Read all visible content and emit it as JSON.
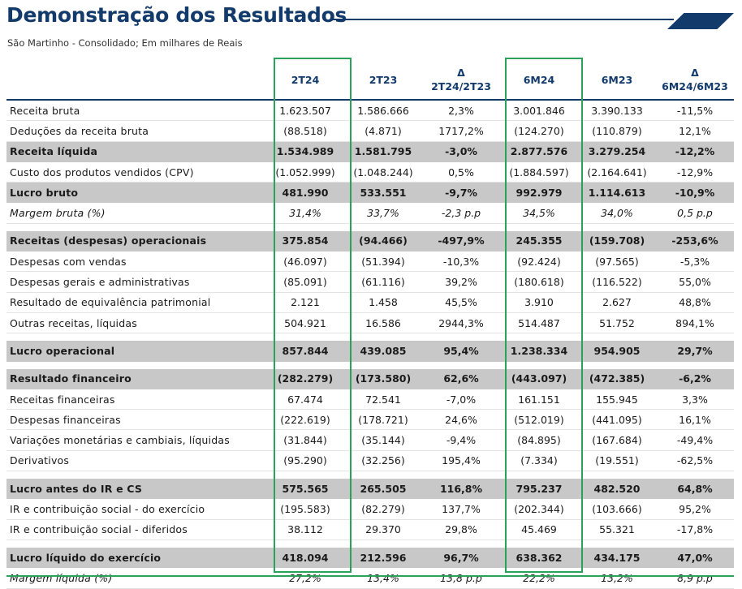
{
  "header": {
    "title": "Demonstração dos Resultados",
    "subtitle": "São Martinho - Consolidado; Em milhares de Reais"
  },
  "colors": {
    "title": "#123a6b",
    "highlight": "#2aa35a",
    "row_highlight": "#c8c8c8"
  },
  "table": {
    "columns": [
      {
        "label": "2T24",
        "sub": ""
      },
      {
        "label": "2T23",
        "sub": ""
      },
      {
        "label": "Δ",
        "sub": "2T24/2T23"
      },
      {
        "label": "6M24",
        "sub": ""
      },
      {
        "label": "6M23",
        "sub": ""
      },
      {
        "label": "Δ",
        "sub": "6M24/6M23"
      }
    ],
    "rows": [
      {
        "label": "Receita bruta",
        "values": [
          "1.623.507",
          "1.586.666",
          "2,3%",
          "3.001.846",
          "3.390.133",
          "-11,5%"
        ]
      },
      {
        "label": "Deduções da receita bruta",
        "values": [
          "(88.518)",
          "(4.871)",
          "1717,2%",
          "(124.270)",
          "(110.879)",
          "12,1%"
        ]
      },
      {
        "label": "Receita líquida",
        "values": [
          "1.534.989",
          "1.581.795",
          "-3,0%",
          "2.877.576",
          "3.279.254",
          "-12,2%"
        ]
      },
      {
        "label": "Custo dos produtos vendidos (CPV)",
        "values": [
          "(1.052.999)",
          "(1.048.244)",
          "0,5%",
          "(1.884.597)",
          "(2.164.641)",
          "-12,9%"
        ]
      },
      {
        "label": "Lucro bruto",
        "values": [
          "481.990",
          "533.551",
          "-9,7%",
          "992.979",
          "1.114.613",
          "-10,9%"
        ]
      },
      {
        "label": "Margem bruta (%)",
        "values": [
          "31,4%",
          "33,7%",
          "-2,3 p.p",
          "34,5%",
          "34,0%",
          "0,5 p.p"
        ]
      },
      {
        "label": "Receitas (despesas) operacionais",
        "values": [
          "375.854",
          "(94.466)",
          "-497,9%",
          "245.355",
          "(159.708)",
          "-253,6%"
        ]
      },
      {
        "label": "Despesas com vendas",
        "values": [
          "(46.097)",
          "(51.394)",
          "-10,3%",
          "(92.424)",
          "(97.565)",
          "-5,3%"
        ]
      },
      {
        "label": "Despesas gerais e administrativas",
        "values": [
          "(85.091)",
          "(61.116)",
          "39,2%",
          "(180.618)",
          "(116.522)",
          "55,0%"
        ]
      },
      {
        "label": "Resultado de equivalência patrimonial",
        "values": [
          "2.121",
          "1.458",
          "45,5%",
          "3.910",
          "2.627",
          "48,8%"
        ]
      },
      {
        "label": "Outras receitas, líquidas",
        "values": [
          "504.921",
          "16.586",
          "2944,3%",
          "514.487",
          "51.752",
          "894,1%"
        ]
      },
      {
        "label": "Lucro operacional",
        "values": [
          "857.844",
          "439.085",
          "95,4%",
          "1.238.334",
          "954.905",
          "29,7%"
        ]
      },
      {
        "label": "Resultado financeiro",
        "values": [
          "(282.279)",
          "(173.580)",
          "62,6%",
          "(443.097)",
          "(472.385)",
          "-6,2%"
        ]
      },
      {
        "label": "Receitas financeiras",
        "values": [
          "67.474",
          "72.541",
          "-7,0%",
          "161.151",
          "155.945",
          "3,3%"
        ]
      },
      {
        "label": "Despesas financeiras",
        "values": [
          "(222.619)",
          "(178.721)",
          "24,6%",
          "(512.019)",
          "(441.095)",
          "16,1%"
        ]
      },
      {
        "label": "Variações monetárias e cambiais, líquidas",
        "values": [
          "(31.844)",
          "(35.144)",
          "-9,4%",
          "(84.895)",
          "(167.684)",
          "-49,4%"
        ]
      },
      {
        "label": "Derivativos",
        "values": [
          "(95.290)",
          "(32.256)",
          "195,4%",
          "(7.334)",
          "(19.551)",
          "-62,5%"
        ]
      },
      {
        "label": "Lucro antes do IR e CS",
        "values": [
          "575.565",
          "265.505",
          "116,8%",
          "795.237",
          "482.520",
          "64,8%"
        ]
      },
      {
        "label": "IR e contribuição social - do exercício",
        "values": [
          "(195.583)",
          "(82.279)",
          "137,7%",
          "(202.344)",
          "(103.666)",
          "95,2%"
        ]
      },
      {
        "label": "IR e contribuição social - diferidos",
        "values": [
          "38.112",
          "29.370",
          "29,8%",
          "45.469",
          "55.321",
          "-17,8%"
        ]
      },
      {
        "label": "Lucro líquido do exercício",
        "values": [
          "418.094",
          "212.596",
          "96,7%",
          "638.362",
          "434.175",
          "47,0%"
        ]
      },
      {
        "label": "Margem líquida (%)",
        "values": [
          "27,2%",
          "13,4%",
          "13,8 p.p",
          "22,2%",
          "13,2%",
          "8,9 p.p"
        ]
      }
    ]
  }
}
